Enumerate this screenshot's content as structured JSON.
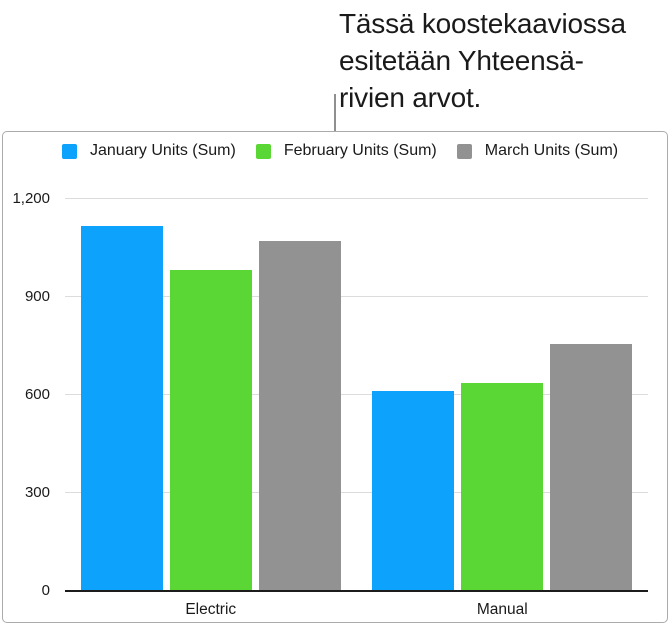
{
  "callout": {
    "lines": [
      "Tässä koostekaaviossa",
      "esitetään Yhteensä-",
      "rivien arvot."
    ]
  },
  "chart_data": {
    "type": "bar",
    "categories": [
      "Electric",
      "Manual"
    ],
    "series": [
      {
        "name": "January Units (Sum)",
        "color": "#0DA2FC",
        "values": [
          1115,
          610
        ]
      },
      {
        "name": "February Units (Sum)",
        "color": "#5BD735",
        "values": [
          980,
          635
        ]
      },
      {
        "name": "March Units (Sum)",
        "color": "#929292",
        "values": [
          1070,
          755
        ]
      }
    ],
    "ylim": [
      0,
      1200
    ],
    "yticks": [
      0,
      300,
      600,
      900,
      1200
    ],
    "ytick_labels": [
      "0",
      "300",
      "600",
      "900",
      "1,200"
    ],
    "grid": true,
    "legend_position": "top"
  },
  "style": {
    "text_color": "#1a1a1a",
    "grid_color": "#dcdcdc",
    "axis_color": "#1c1c1c",
    "card_border_color": "#ababab",
    "callout_line_color": "#8f8f8f"
  }
}
